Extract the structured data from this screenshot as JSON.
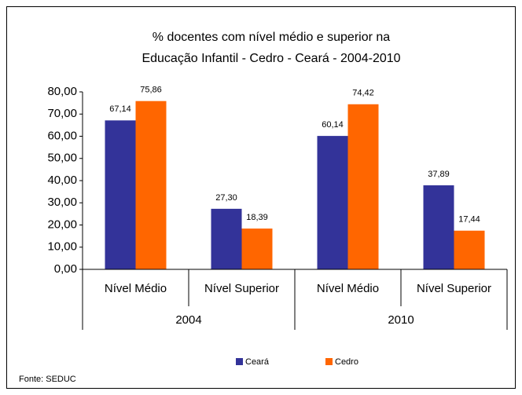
{
  "chart_data": {
    "type": "bar",
    "title": "% docentes com nível médio e superior na",
    "subtitle": "Educação Infantil - Cedro  -  Ceará - 2004-2010",
    "categories": [
      "Nível Médio",
      "Nível Superior",
      "Nível Médio",
      "Nível Superior"
    ],
    "groups": [
      "2004",
      "2010"
    ],
    "series": [
      {
        "name": "Ceará",
        "color": "#333399",
        "values": [
          67.14,
          27.3,
          60.14,
          37.89
        ],
        "value_labels": [
          "67,14",
          "27,30",
          "60,14",
          "37,89"
        ]
      },
      {
        "name": "Cedro",
        "color": "#ff6600",
        "values": [
          75.86,
          18.39,
          74.42,
          17.44
        ],
        "value_labels": [
          "75,86",
          "18,39",
          "74,42",
          "17,44"
        ]
      }
    ],
    "ylim": [
      0,
      80
    ],
    "yticks": [
      {
        "value": 0,
        "label": "0,00"
      },
      {
        "value": 10,
        "label": "10,00"
      },
      {
        "value": 20,
        "label": "20,00"
      },
      {
        "value": 30,
        "label": "30,00"
      },
      {
        "value": 40,
        "label": "40,00"
      },
      {
        "value": 50,
        "label": "50,00"
      },
      {
        "value": 60,
        "label": "60,00"
      },
      {
        "value": 70,
        "label": "70,00"
      },
      {
        "value": 80,
        "label": "80,00"
      }
    ],
    "legend": "bottom",
    "source": "Fonte: SEDUC"
  }
}
